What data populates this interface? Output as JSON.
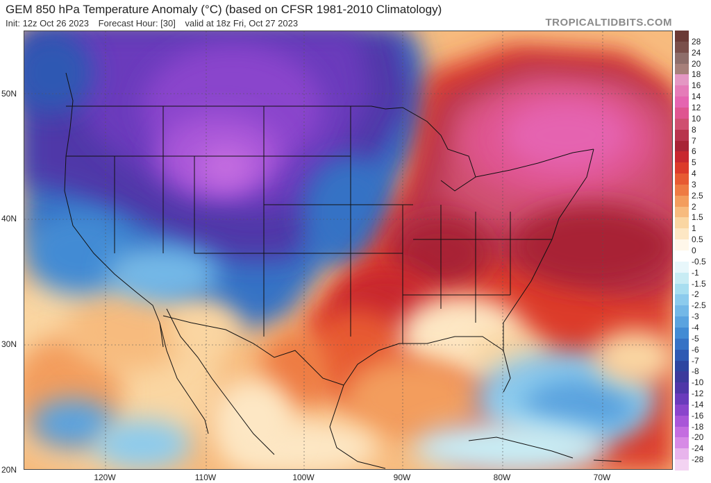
{
  "header": {
    "title": "GEM 850 hPa Temperature Anomaly (°C) (based on CFSR 1981-2010 Climatology)",
    "init": "Init: 12z Oct 26 2023",
    "forecast_hour": "Forecast Hour: [30]",
    "valid": "valid at 18z Fri, Oct 27 2023",
    "watermark": "TROPICALTIDBITS.COM"
  },
  "map": {
    "lat_labels": [
      "50N",
      "40N",
      "30N",
      "20N"
    ],
    "lon_labels": [
      "120W",
      "110W",
      "100W",
      "90W",
      "80W",
      "70W"
    ]
  },
  "colorbar": {
    "labels": [
      "28",
      "24",
      "20",
      "18",
      "16",
      "14",
      "12",
      "10",
      "8",
      "7",
      "6",
      "5",
      "4",
      "3",
      "2.5",
      "2",
      "1.5",
      "1",
      "0.5",
      "0",
      "-0.5",
      "-1",
      "-1.5",
      "-2",
      "-2.5",
      "-3",
      "-4",
      "-5",
      "-6",
      "-7",
      "-8",
      "-10",
      "-12",
      "-14",
      "-16",
      "-18",
      "-20",
      "-24",
      "-28"
    ],
    "colors": [
      "#7a4f4a",
      "#8e6e6a",
      "#a7807a",
      "#e497c3",
      "#e57bb8",
      "#e564b0",
      "#df5590",
      "#cf4f70",
      "#b8344d",
      "#a82436",
      "#c8272f",
      "#dc3a2a",
      "#e75a32",
      "#ee7b43",
      "#f39d5d",
      "#f7bb7e",
      "#fad6a2",
      "#fde7c4",
      "#fff7ea",
      "#ffffff",
      "#e8f7fb",
      "#c8ecf4",
      "#a8def0",
      "#8ccbed",
      "#73b8e7",
      "#5aa3df",
      "#428bd4",
      "#3672c5",
      "#2e59b3",
      "#2d45a0",
      "#3c3a9c",
      "#4f37a8",
      "#6a3bbc",
      "#8a45cc",
      "#a956d8",
      "#c46de0",
      "#d78ae6",
      "#e8b4ec",
      "#f3d3f2"
    ]
  }
}
